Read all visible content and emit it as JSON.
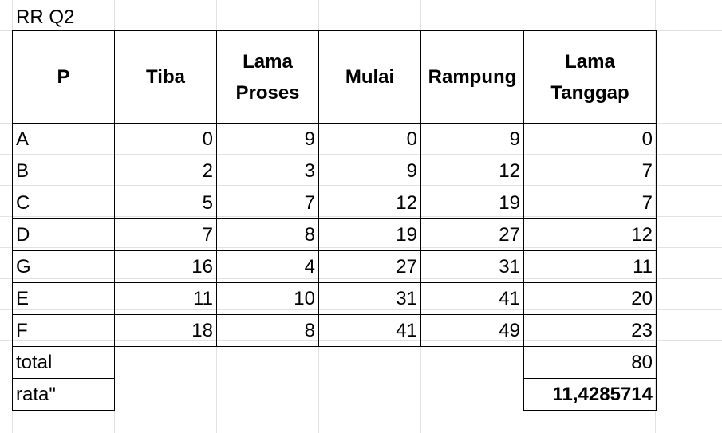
{
  "sheet_title": "RR Q2",
  "headers": [
    "P",
    "Tiba",
    "Lama Proses",
    "Mulai",
    "Rampung",
    "Lama Tanggap"
  ],
  "rows": [
    [
      "A",
      "0",
      "9",
      "0",
      "9",
      "0"
    ],
    [
      "B",
      "2",
      "3",
      "9",
      "12",
      "7"
    ],
    [
      "C",
      "5",
      "7",
      "12",
      "19",
      "7"
    ],
    [
      "D",
      "7",
      "8",
      "19",
      "27",
      "12"
    ],
    [
      "G",
      "16",
      "4",
      "27",
      "31",
      "11"
    ],
    [
      "E",
      "11",
      "10",
      "31",
      "41",
      "20"
    ],
    [
      "F",
      "18",
      "8",
      "41",
      "49",
      "23"
    ]
  ],
  "total": {
    "label": "total",
    "value": "80"
  },
  "average": {
    "label": "rata\"",
    "value": "11,4285714"
  }
}
